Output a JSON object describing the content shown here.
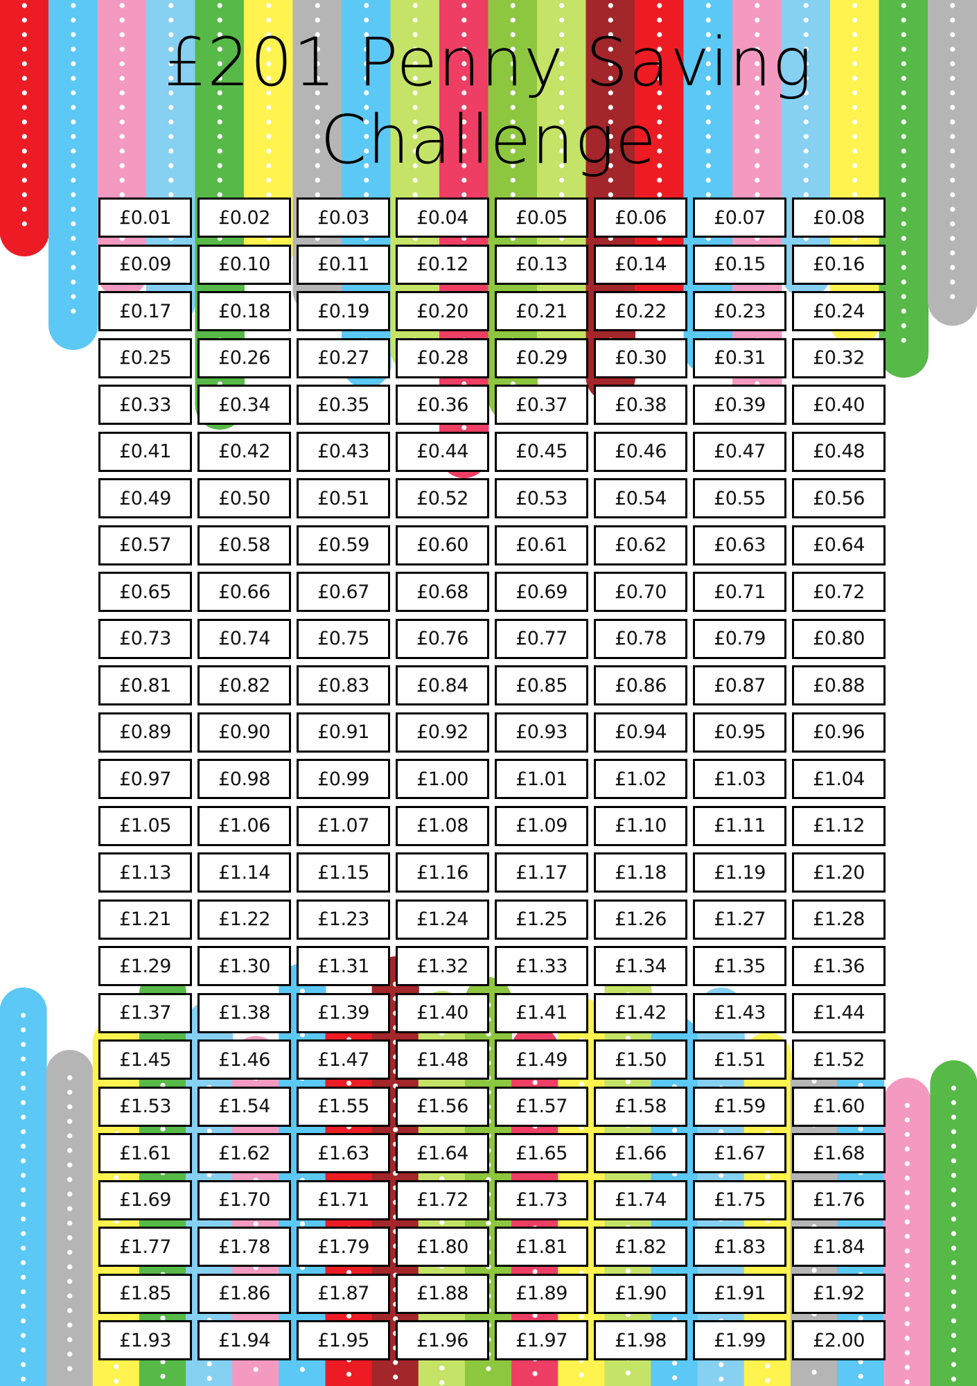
{
  "title": {
    "line1": "£201 Penny Saving",
    "line2": "Challenge"
  },
  "colors": {
    "stripes_top": [
      "#ed1c24",
      "#5bc8f5",
      "#f49ac1",
      "#86d0f2",
      "#57b947",
      "#fff34f",
      "#b5b5b5",
      "#5bc8f5",
      "#c5e367",
      "#ef3e63",
      "#8dc63f",
      "#c5e367",
      "#a3262a",
      "#ed1c24",
      "#5bc8f5",
      "#f49ac1",
      "#86d0f2",
      "#fff34f",
      "#57b947",
      "#b5b5b5"
    ],
    "stripes_bottom": [
      "#5bc8f5",
      "#b5b5b5",
      "#fff34f",
      "#57b947",
      "#86d0f2",
      "#f49ac1",
      "#5bc8f5",
      "#ed1c24",
      "#a3262a",
      "#c5e367",
      "#8dc63f",
      "#ef3e63",
      "#fff34f",
      "#c5e367",
      "#5bc8f5",
      "#86d0f2",
      "#fff34f",
      "#b5b5b5",
      "#5bc8f5",
      "#f49ac1",
      "#57b947"
    ]
  },
  "amounts": [
    "£0.01",
    "£0.02",
    "£0.03",
    "£0.04",
    "£0.05",
    "£0.06",
    "£0.07",
    "£0.08",
    "£0.09",
    "£0.10",
    "£0.11",
    "£0.12",
    "£0.13",
    "£0.14",
    "£0.15",
    "£0.16",
    "£0.17",
    "£0.18",
    "£0.19",
    "£0.20",
    "£0.21",
    "£0.22",
    "£0.23",
    "£0.24",
    "£0.25",
    "£0.26",
    "£0.27",
    "£0.28",
    "£0.29",
    "£0.30",
    "£0.31",
    "£0.32",
    "£0.33",
    "£0.34",
    "£0.35",
    "£0.36",
    "£0.37",
    "£0.38",
    "£0.39",
    "£0.40",
    "£0.41",
    "£0.42",
    "£0.43",
    "£0.44",
    "£0.45",
    "£0.46",
    "£0.47",
    "£0.48",
    "£0.49",
    "£0.50",
    "£0.51",
    "£0.52",
    "£0.53",
    "£0.54",
    "£0.55",
    "£0.56",
    "£0.57",
    "£0.58",
    "£0.59",
    "£0.60",
    "£0.61",
    "£0.62",
    "£0.63",
    "£0.64",
    "£0.65",
    "£0.66",
    "£0.67",
    "£0.68",
    "£0.69",
    "£0.70",
    "£0.71",
    "£0.72",
    "£0.73",
    "£0.74",
    "£0.75",
    "£0.76",
    "£0.77",
    "£0.78",
    "£0.79",
    "£0.80",
    "£0.81",
    "£0.82",
    "£0.83",
    "£0.84",
    "£0.85",
    "£0.86",
    "£0.87",
    "£0.88",
    "£0.89",
    "£0.90",
    "£0.91",
    "£0.92",
    "£0.93",
    "£0.94",
    "£0.95",
    "£0.96",
    "£0.97",
    "£0.98",
    "£0.99",
    "£1.00",
    "£1.01",
    "£1.02",
    "£1.03",
    "£1.04",
    "£1.05",
    "£1.06",
    "£1.07",
    "£1.08",
    "£1.09",
    "£1.10",
    "£1.11",
    "£1.12",
    "£1.13",
    "£1.14",
    "£1.15",
    "£1.16",
    "£1.17",
    "£1.18",
    "£1.19",
    "£1.20",
    "£1.21",
    "£1.22",
    "£1.23",
    "£1.24",
    "£1.25",
    "£1.26",
    "£1.27",
    "£1.28",
    "£1.29",
    "£1.30",
    "£1.31",
    "£1.32",
    "£1.33",
    "£1.34",
    "£1.35",
    "£1.36",
    "£1.37",
    "£1.38",
    "£1.39",
    "£1.40",
    "£1.41",
    "£1.42",
    "£1.43",
    "£1.44",
    "£1.45",
    "£1.46",
    "£1.47",
    "£1.48",
    "£1.49",
    "£1.50",
    "£1.51",
    "£1.52",
    "£1.53",
    "£1.54",
    "£1.55",
    "£1.56",
    "£1.57",
    "£1.58",
    "£1.59",
    "£1.60",
    "£1.61",
    "£1.62",
    "£1.63",
    "£1.64",
    "£1.65",
    "£1.66",
    "£1.67",
    "£1.68",
    "£1.69",
    "£1.70",
    "£1.71",
    "£1.72",
    "£1.73",
    "£1.74",
    "£1.75",
    "£1.76",
    "£1.77",
    "£1.78",
    "£1.79",
    "£1.80",
    "£1.81",
    "£1.82",
    "£1.83",
    "£1.84",
    "£1.85",
    "£1.86",
    "£1.87",
    "£1.88",
    "£1.89",
    "£1.90",
    "£1.91",
    "£1.92",
    "£1.93",
    "£1.94",
    "£1.95",
    "£1.96",
    "£1.97",
    "£1.98",
    "£1.99",
    "£2.00"
  ]
}
